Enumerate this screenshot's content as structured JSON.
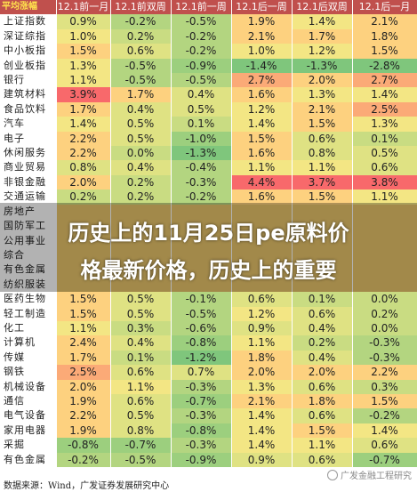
{
  "header": {
    "first": "平均涨幅",
    "cols": [
      "12.1前一月",
      "12.1前双周",
      "12.1前一周",
      "12.1后一周",
      "12.1后双周",
      "12.1后一月"
    ]
  },
  "rows": [
    {
      "name": "上证指数",
      "values": [
        "0.9%",
        "-0.2%",
        "-0.5%",
        "1.9%",
        "1.4%",
        "2.1%"
      ]
    },
    {
      "name": "深证综指",
      "values": [
        "1.0%",
        "0.2%",
        "-0.2%",
        "2.1%",
        "1.7%",
        "1.8%"
      ]
    },
    {
      "name": "中小板指",
      "values": [
        "1.5%",
        "0.6%",
        "-0.2%",
        "1.0%",
        "1.2%",
        "1.5%"
      ]
    },
    {
      "name": "创业板指",
      "values": [
        "1.3%",
        "-0.5%",
        "-0.9%",
        "-1.4%",
        "-1.3%",
        "-2.8%"
      ]
    },
    {
      "name": "银行",
      "values": [
        "1.1%",
        "-0.5%",
        "-0.5%",
        "2.7%",
        "2.0%",
        "2.7%"
      ]
    },
    {
      "name": "建筑材料",
      "values": [
        "3.9%",
        "1.7%",
        "0.4%",
        "1.6%",
        "1.3%",
        "1.4%"
      ]
    },
    {
      "name": "食品饮料",
      "values": [
        "1.7%",
        "0.4%",
        "0.5%",
        "1.2%",
        "2.1%",
        "2.5%"
      ]
    },
    {
      "name": "汽车",
      "values": [
        "1.4%",
        "0.5%",
        "0.1%",
        "1.4%",
        "1.5%",
        "1.3%"
      ]
    },
    {
      "name": "电子",
      "values": [
        "2.2%",
        "0.5%",
        "-1.0%",
        "1.5%",
        "0.6%",
        "0.1%"
      ]
    },
    {
      "name": "休闲服务",
      "values": [
        "2.2%",
        "0.0%",
        "-1.3%",
        "1.6%",
        "0.8%",
        "0.5%"
      ]
    },
    {
      "name": "商业贸易",
      "values": [
        "0.8%",
        "0.4%",
        "-0.4%",
        "1.1%",
        "1.1%",
        "0.6%"
      ]
    },
    {
      "name": "非银金融",
      "values": [
        "2.0%",
        "0.2%",
        "-0.3%",
        "4.4%",
        "3.7%",
        "3.8%"
      ]
    },
    {
      "name": "交通运输",
      "values": [
        "0.2%",
        "0.2%",
        "-0.2%",
        "1.6%",
        "1.5%",
        "1.1%"
      ]
    },
    {
      "name": "房地产",
      "values": [
        "",
        "",
        "",
        "",
        "",
        ""
      ]
    },
    {
      "name": "国防军工",
      "values": [
        "",
        "",
        "",
        "",
        "",
        ""
      ]
    },
    {
      "name": "公用事业",
      "values": [
        "",
        "",
        "",
        "",
        "",
        ""
      ]
    },
    {
      "name": "综合",
      "values": [
        "",
        "",
        "",
        "",
        "",
        ""
      ]
    },
    {
      "name": "有色金属",
      "values": [
        "",
        "",
        "",
        "",
        "",
        ""
      ]
    },
    {
      "name": "纺织服装",
      "values": [
        "",
        "",
        "",
        "",
        "",
        ""
      ]
    },
    {
      "name": "医药生物",
      "values": [
        "1.5%",
        "0.5%",
        "-0.1%",
        "0.6%",
        "0.1%",
        "0.0%"
      ]
    },
    {
      "name": "轻工制造",
      "values": [
        "1.5%",
        "0.5%",
        "-0.5%",
        "1.2%",
        "0.6%",
        "0.2%"
      ]
    },
    {
      "name": "化工",
      "values": [
        "1.1%",
        "0.3%",
        "-0.6%",
        "0.9%",
        "0.4%",
        "0.0%"
      ]
    },
    {
      "name": "计算机",
      "values": [
        "2.4%",
        "0.4%",
        "-0.8%",
        "1.1%",
        "0.2%",
        "-0.3%"
      ]
    },
    {
      "name": "传媒",
      "values": [
        "1.7%",
        "0.1%",
        "-1.2%",
        "1.8%",
        "0.4%",
        "-0.3%"
      ]
    },
    {
      "name": "钢铁",
      "values": [
        "2.5%",
        "0.6%",
        "0.7%",
        "2.0%",
        "2.0%",
        "2.2%"
      ]
    },
    {
      "name": "机械设备",
      "values": [
        "2.0%",
        "1.1%",
        "-0.3%",
        "1.3%",
        "0.6%",
        "0.3%"
      ]
    },
    {
      "name": "通信",
      "values": [
        "1.9%",
        "0.6%",
        "-0.7%",
        "2.1%",
        "1.8%",
        "1.5%"
      ]
    },
    {
      "name": "电气设备",
      "values": [
        "2.2%",
        "0.5%",
        "-0.3%",
        "1.4%",
        "0.6%",
        "-0.2%"
      ]
    },
    {
      "name": "家用电器",
      "values": [
        "1.9%",
        "0.8%",
        "-0.8%",
        "1.4%",
        "1.5%",
        "1.4%"
      ]
    },
    {
      "name": "采掘",
      "values": [
        "-0.8%",
        "-0.7%",
        "-0.3%",
        "1.4%",
        "1.1%",
        "0.6%"
      ]
    },
    {
      "name": "有色金属",
      "values": [
        "-0.2%",
        "-0.5%",
        "-0.9%",
        "0.9%",
        "0.6%",
        "-0.7%"
      ]
    }
  ],
  "source": "数据来源：Wind，广发证券发展研究中心",
  "overlay": {
    "line1": "历史上的11月25日pe原料价",
    "line2": "格最新价格，历史上的重要"
  },
  "watermark": "广发金融工程研究"
}
